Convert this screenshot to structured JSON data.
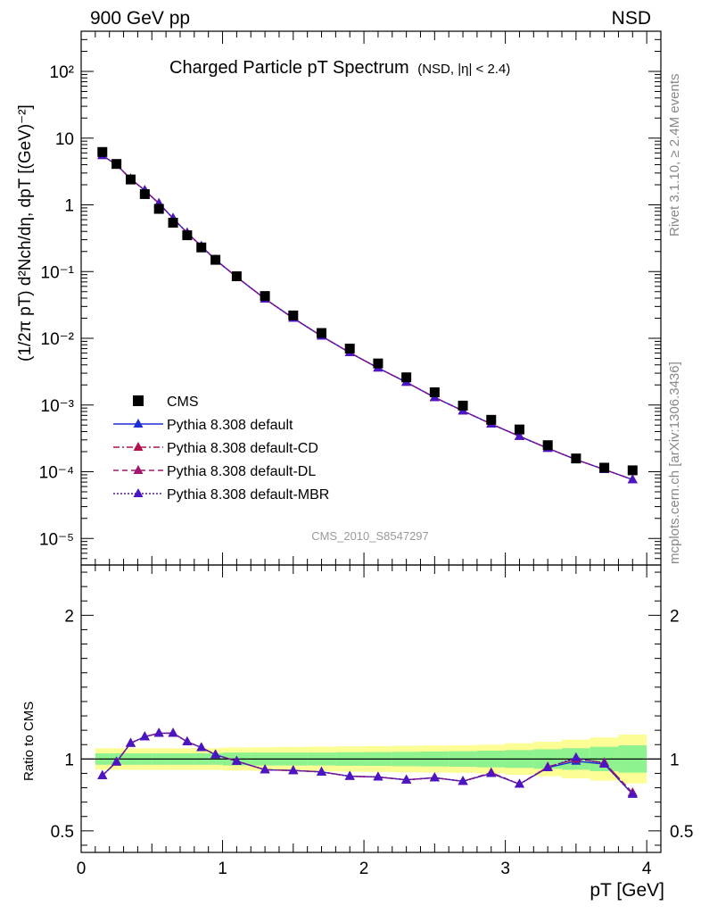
{
  "header": {
    "left": "900 GeV pp",
    "right": "NSD"
  },
  "side_labels": {
    "rivet": "Rivet 3.1.10, ≥ 2.4M events",
    "mcplots": "mcplots.cern.ch [arXiv:1306.3436]"
  },
  "chart_data": [
    {
      "type": "scatter",
      "title": "Charged Particle pT Spectrum",
      "subtitle": "(NSD, |η| < 2.4)",
      "watermark": "CMS_2010_S8547297",
      "ylabel": "(1/2π pT) d²Nch/dη, dpT [(GeV)⁻²]",
      "yscale": "log",
      "xlim": [
        0,
        4.1
      ],
      "ylim": [
        4e-06,
        400
      ],
      "yticks": [
        {
          "value": 100,
          "label": "10²"
        },
        {
          "value": 10,
          "label": "10"
        },
        {
          "value": 1,
          "label": "1"
        },
        {
          "value": 0.1,
          "label": "10⁻¹"
        },
        {
          "value": 0.01,
          "label": "10⁻²"
        },
        {
          "value": 0.001,
          "label": "10⁻³"
        },
        {
          "value": 0.0001,
          "label": "10⁻⁴"
        },
        {
          "value": 1e-05,
          "label": "10⁻⁵"
        }
      ],
      "x": [
        0.15,
        0.25,
        0.35,
        0.45,
        0.55,
        0.65,
        0.75,
        0.85,
        0.95,
        1.1,
        1.3,
        1.5,
        1.7,
        1.9,
        2.1,
        2.3,
        2.5,
        2.7,
        2.9,
        3.1,
        3.3,
        3.5,
        3.7,
        3.9
      ],
      "series": [
        {
          "name": "CMS",
          "marker": "square",
          "color": "#000000",
          "values": [
            6.2,
            4.1,
            2.4,
            1.45,
            0.87,
            0.54,
            0.35,
            0.23,
            0.15,
            0.085,
            0.043,
            0.022,
            0.012,
            0.007,
            0.0042,
            0.0026,
            0.00155,
            0.00098,
            0.0006,
            0.00043,
            0.00025,
            0.000158,
            0.000115,
            0.000105
          ]
        },
        {
          "name": "Pythia 8.308 default",
          "marker": "triangle",
          "line": "solid",
          "color": "#1f2fd6",
          "values": [
            5.5,
            4.0,
            2.45,
            1.65,
            1.05,
            0.63,
            0.38,
            0.24,
            0.15,
            0.083,
            0.039,
            0.02,
            0.0108,
            0.0061,
            0.0036,
            0.0022,
            0.0013,
            0.00082,
            0.00052,
            0.00034,
            0.000225,
            0.000152,
            0.000108,
            7.6e-05
          ]
        },
        {
          "name": "Pythia 8.308 default-CD",
          "marker": "triangle",
          "line": "dashdot",
          "color": "#b0124f",
          "values": [
            5.5,
            4.0,
            2.45,
            1.65,
            1.05,
            0.63,
            0.38,
            0.24,
            0.15,
            0.083,
            0.039,
            0.02,
            0.0108,
            0.0061,
            0.0036,
            0.0022,
            0.0013,
            0.00082,
            0.00052,
            0.00034,
            0.000225,
            0.000152,
            0.000108,
            7.6e-05
          ]
        },
        {
          "name": "Pythia 8.308 default-DL",
          "marker": "triangle",
          "line": "dashed",
          "color": "#a0186a",
          "values": [
            5.5,
            4.0,
            2.45,
            1.65,
            1.05,
            0.63,
            0.38,
            0.24,
            0.15,
            0.083,
            0.039,
            0.02,
            0.0108,
            0.0061,
            0.0036,
            0.0022,
            0.0013,
            0.00082,
            0.00052,
            0.00034,
            0.000225,
            0.000152,
            0.000108,
            7.6e-05
          ]
        },
        {
          "name": "Pythia 8.308 default-MBR",
          "marker": "triangle",
          "line": "dotted",
          "color": "#4a16c4",
          "values": [
            5.5,
            4.0,
            2.45,
            1.65,
            1.05,
            0.63,
            0.38,
            0.24,
            0.15,
            0.083,
            0.039,
            0.02,
            0.0108,
            0.0061,
            0.0036,
            0.0022,
            0.0013,
            0.00082,
            0.00052,
            0.00034,
            0.000225,
            0.000152,
            0.000108,
            7.6e-05
          ]
        }
      ],
      "legend_position": "lower-left"
    },
    {
      "type": "line",
      "ylabel": "Ratio to CMS",
      "xlabel": "pT [GeV]",
      "xlim": [
        0,
        4.1
      ],
      "ylim": [
        0.35,
        2.35
      ],
      "xticks": [
        0,
        1,
        2,
        3,
        4
      ],
      "yticks": [
        0.5,
        1,
        2
      ],
      "band_edges": [
        0.1,
        0.2,
        0.3,
        0.4,
        0.5,
        0.6,
        0.7,
        0.8,
        0.9,
        1.0,
        1.2,
        1.4,
        1.6,
        1.8,
        2.0,
        2.2,
        2.4,
        2.6,
        2.8,
        3.0,
        3.2,
        3.4,
        3.6,
        3.8,
        4.0
      ],
      "band_inner": [
        0.04,
        0.04,
        0.04,
        0.04,
        0.04,
        0.04,
        0.04,
        0.04,
        0.04,
        0.045,
        0.045,
        0.045,
        0.045,
        0.047,
        0.048,
        0.05,
        0.052,
        0.054,
        0.058,
        0.062,
        0.068,
        0.075,
        0.085,
        0.095
      ],
      "band_outer": [
        0.075,
        0.075,
        0.075,
        0.075,
        0.075,
        0.075,
        0.075,
        0.075,
        0.075,
        0.08,
        0.082,
        0.084,
        0.086,
        0.088,
        0.09,
        0.092,
        0.094,
        0.096,
        0.1,
        0.11,
        0.12,
        0.135,
        0.15,
        0.17
      ],
      "x": [
        0.15,
        0.25,
        0.35,
        0.45,
        0.55,
        0.65,
        0.75,
        0.85,
        0.95,
        1.1,
        1.3,
        1.5,
        1.7,
        1.9,
        2.1,
        2.3,
        2.5,
        2.7,
        2.9,
        3.1,
        3.3,
        3.5,
        3.7,
        3.9
      ],
      "series": [
        {
          "name": "Pythia 8.308 default",
          "color": "#1f2fd6",
          "line": "solid",
          "values": [
            0.885,
            0.98,
            1.11,
            1.155,
            1.18,
            1.18,
            1.12,
            1.08,
            1.03,
            0.985,
            0.925,
            0.92,
            0.91,
            0.88,
            0.875,
            0.855,
            0.87,
            0.845,
            0.9,
            0.825,
            0.94,
            0.985,
            0.965,
            0.755
          ]
        },
        {
          "name": "Pythia 8.308 default-CD",
          "color": "#b0124f",
          "line": "dashdot",
          "values": [
            0.885,
            0.98,
            1.11,
            1.155,
            1.18,
            1.18,
            1.12,
            1.08,
            1.03,
            0.985,
            0.925,
            0.92,
            0.91,
            0.88,
            0.875,
            0.855,
            0.87,
            0.845,
            0.905,
            0.825,
            0.945,
            1.0,
            0.975,
            0.765
          ]
        },
        {
          "name": "Pythia 8.308 default-DL",
          "color": "#a0186a",
          "line": "dashed",
          "values": [
            0.885,
            0.98,
            1.11,
            1.155,
            1.18,
            1.18,
            1.12,
            1.08,
            1.03,
            0.985,
            0.925,
            0.92,
            0.91,
            0.88,
            0.875,
            0.855,
            0.87,
            0.845,
            0.905,
            0.825,
            0.945,
            1.0,
            0.975,
            0.765
          ]
        },
        {
          "name": "Pythia 8.308 default-MBR",
          "color": "#4a16c4",
          "line": "dotted",
          "values": [
            0.885,
            0.98,
            1.11,
            1.155,
            1.18,
            1.18,
            1.12,
            1.08,
            1.03,
            0.985,
            0.925,
            0.92,
            0.91,
            0.88,
            0.875,
            0.855,
            0.87,
            0.845,
            0.9,
            0.825,
            0.94,
            1.01,
            0.965,
            0.755
          ]
        }
      ]
    }
  ]
}
